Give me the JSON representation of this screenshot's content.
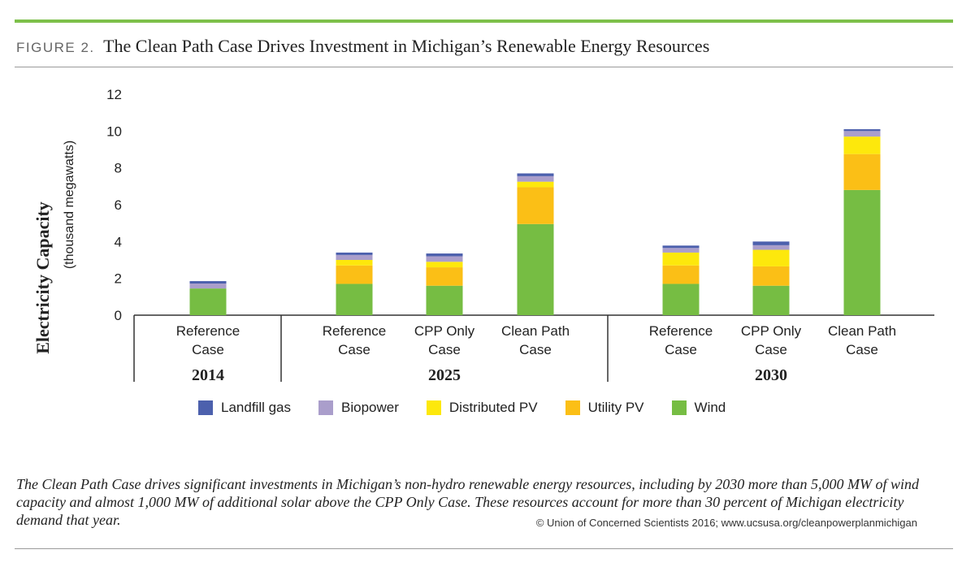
{
  "figure": {
    "label": "FIGURE 2.",
    "title": "The Clean Path Case Drives Investment in Michigan’s Renewable Energy Resources"
  },
  "chart_data": {
    "type": "bar",
    "stacked": true,
    "ylabel": "Electricity Capacity",
    "ylabel_sub": "(thousand megawatts)",
    "ylim": [
      0,
      12
    ],
    "yticks": [
      0,
      2,
      4,
      6,
      8,
      10,
      12
    ],
    "grid": false,
    "legend_position": "bottom",
    "groups": [
      {
        "label": "2014",
        "categories": [
          [
            "Reference",
            "Case"
          ]
        ]
      },
      {
        "label": "2025",
        "categories": [
          [
            "Reference",
            "Case"
          ],
          [
            "CPP Only",
            "Case"
          ],
          [
            "Clean Path",
            "Case"
          ]
        ]
      },
      {
        "label": "2030",
        "categories": [
          [
            "Reference",
            "Case"
          ],
          [
            "CPP Only",
            "Case"
          ],
          [
            "Clean Path",
            "Case"
          ]
        ]
      }
    ],
    "series": [
      {
        "name": "Wind",
        "color": "#76bd43",
        "values": [
          1.45,
          1.7,
          1.6,
          4.95,
          1.7,
          1.6,
          6.8
        ]
      },
      {
        "name": "Utility PV",
        "color": "#fbbf16",
        "values": [
          0.0,
          1.0,
          1.0,
          2.0,
          1.0,
          1.05,
          1.95
        ]
      },
      {
        "name": "Distributed PV",
        "color": "#fde80c",
        "values": [
          0.0,
          0.3,
          0.3,
          0.3,
          0.7,
          0.9,
          0.95
        ]
      },
      {
        "name": "Biopower",
        "color": "#aa9ecb",
        "values": [
          0.27,
          0.27,
          0.3,
          0.3,
          0.25,
          0.25,
          0.3
        ]
      },
      {
        "name": "Landfill gas",
        "color": "#4c60ad",
        "values": [
          0.13,
          0.13,
          0.15,
          0.15,
          0.13,
          0.2,
          0.1
        ]
      }
    ]
  },
  "legend": [
    {
      "name": "Landfill gas",
      "color": "#4c60ad"
    },
    {
      "name": "Biopower",
      "color": "#aa9ecb"
    },
    {
      "name": "Distributed PV",
      "color": "#fde80c"
    },
    {
      "name": "Utility PV",
      "color": "#fbbf16"
    },
    {
      "name": "Wind",
      "color": "#76bd43"
    }
  ],
  "caption": "The Clean Path Case drives significant investments in Michigan’s non-hydro renewable energy resources, including by 2030 more than 5,000 MW of wind capacity and almost 1,000 MW of additional solar above the CPP Only Case. These resources account for more than 30 percent of Michigan electricity demand that year.",
  "credit": "© Union of Concerned Scientists 2016; www.ucsusa.org/cleanpowerplanmichigan"
}
